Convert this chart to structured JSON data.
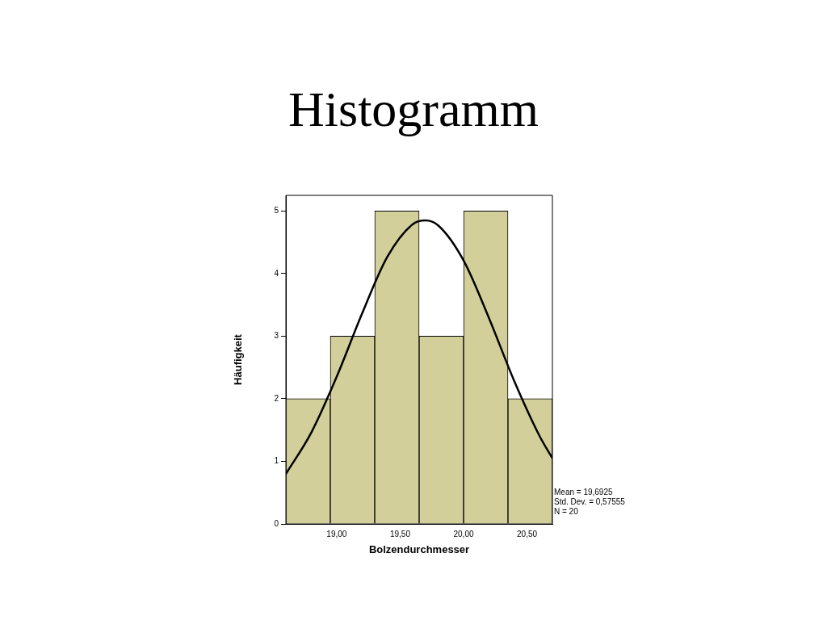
{
  "chart_data": {
    "type": "histogram",
    "title": "Histogramm",
    "xlabel": "Bolzendurchmesser",
    "ylabel": "Häufigkeit",
    "bins": [
      18.6,
      18.95,
      19.3,
      19.65,
      20.0,
      20.35,
      20.7
    ],
    "values": [
      2,
      3,
      5,
      3,
      5,
      2
    ],
    "color": "#d3cf9a",
    "series": [
      {
        "type": "line",
        "color": "#000000",
        "marker": "none",
        "x": [
          18.6,
          18.8,
          19.0,
          19.2,
          19.4,
          19.6,
          19.7,
          19.8,
          20.0,
          20.2,
          20.4,
          20.6,
          20.7
        ],
        "values": [
          0.8,
          1.46,
          2.35,
          3.36,
          4.27,
          4.79,
          4.85,
          4.77,
          4.21,
          3.29,
          2.28,
          1.4,
          1.05
        ]
      }
    ],
    "xlim": [
      18.6,
      20.7
    ],
    "xticks": [
      {
        "value": 19,
        "label": "19,00"
      },
      {
        "value": 19.5,
        "label": "19,50"
      },
      {
        "value": 20,
        "label": "20,00"
      },
      {
        "value": 20.5,
        "label": "20,50"
      }
    ],
    "ylim": [
      0,
      5.25
    ],
    "yticks": [
      0,
      1,
      2,
      3,
      4,
      5
    ],
    "annotations": [
      "Mean = 19,6925",
      "Std. Dev. = 0,57555",
      "N = 20"
    ]
  }
}
